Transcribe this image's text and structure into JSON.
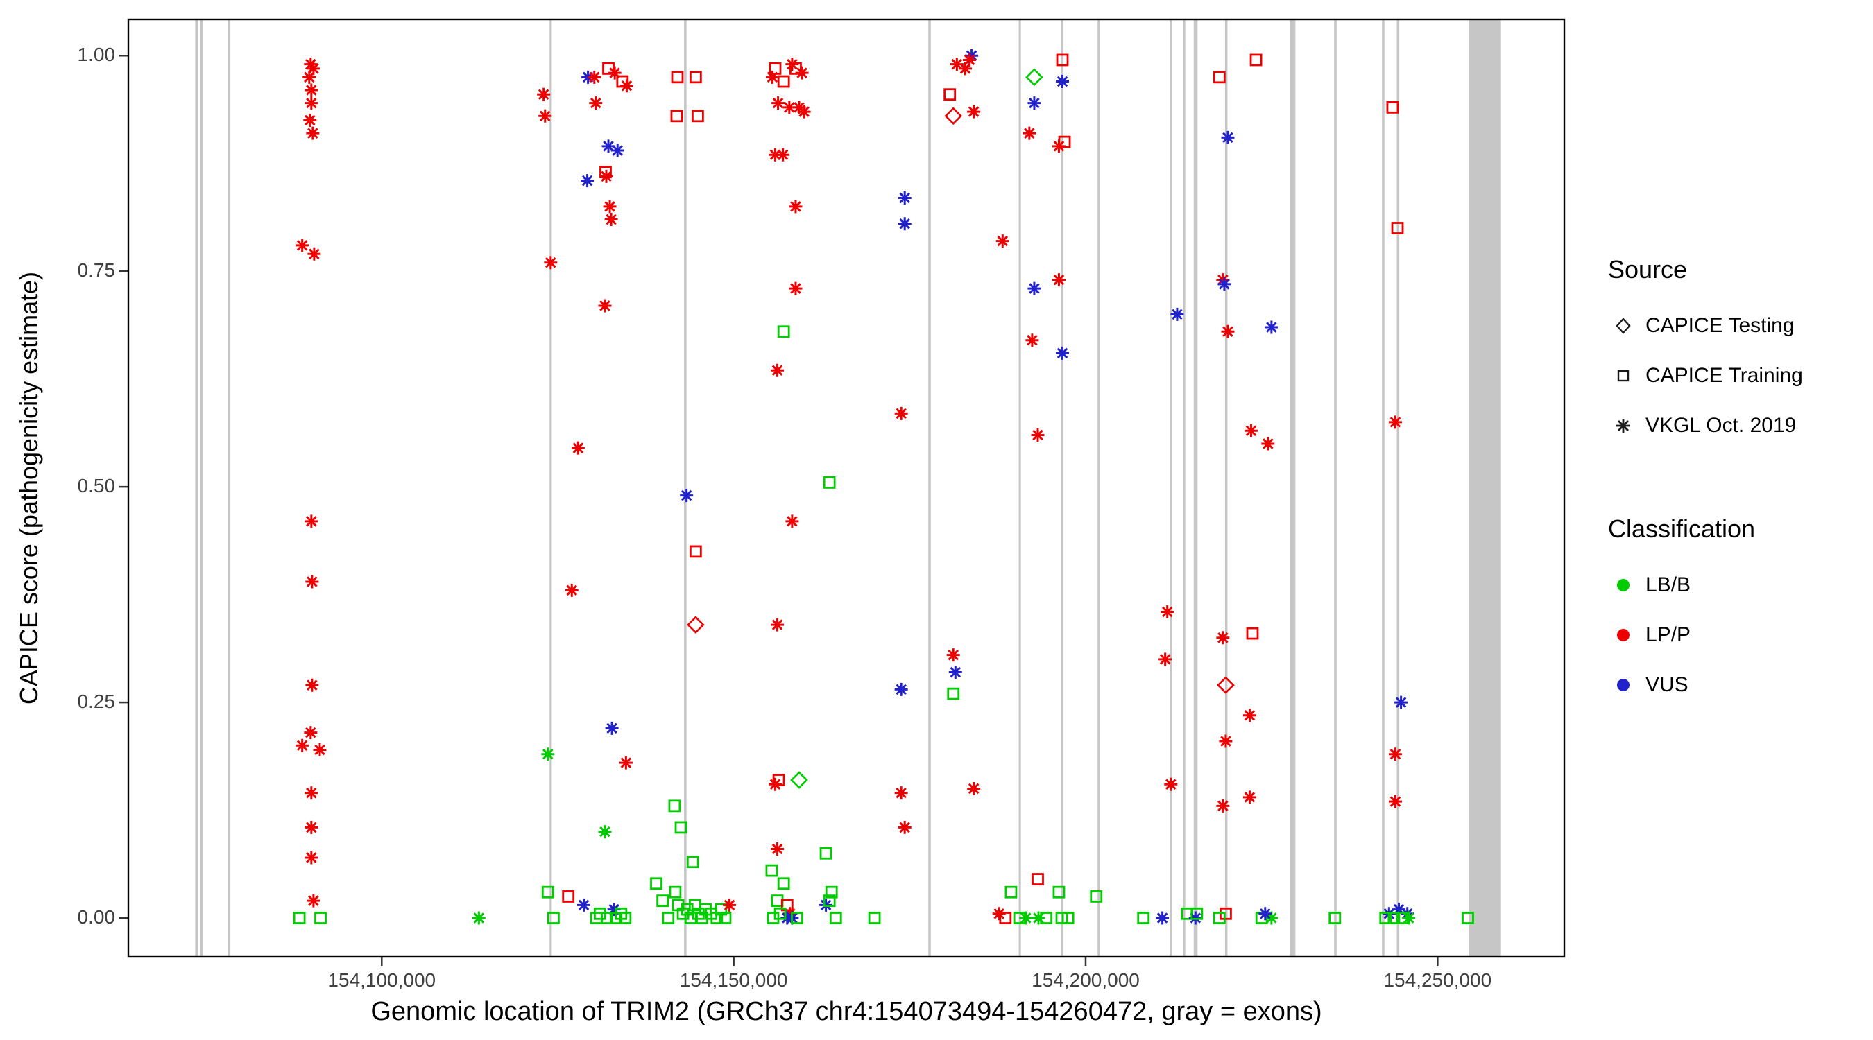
{
  "legend": {
    "source": {
      "title": "Source",
      "items": [
        {
          "shape": "d",
          "label": "CAPICE Testing"
        },
        {
          "shape": "s",
          "label": "CAPICE Training"
        },
        {
          "shape": "a",
          "label": "VKGL Oct. 2019"
        }
      ]
    },
    "classification": {
      "title": "Classification",
      "items": [
        {
          "class_code": "g",
          "label": "LB/B"
        },
        {
          "class_code": "r",
          "label": "LP/P"
        },
        {
          "class_code": "b",
          "label": "VUS"
        }
      ]
    }
  },
  "colors": {
    "lbb_green": "#00CC00",
    "lpp_red": "#EE0000",
    "vus_blue": "#2222CC",
    "exon_gray": "#C6C6C6",
    "axis_text": "#404040",
    "panel_border": "#000000"
  },
  "chart_data": {
    "type": "scatter",
    "title": "",
    "xlabel": "Genomic location of TRIM2 (GRCh37 chr4:154073494-154260472, gray = exons)",
    "ylabel": "CAPICE score (pathogenicity estimate)",
    "xlim": [
      154064000,
      154268000
    ],
    "ylim": [
      -0.045,
      1.042
    ],
    "grid": "off",
    "legend_position": "right",
    "x_ticks": [
      {
        "value": 154100000,
        "label": "154,100,000"
      },
      {
        "value": 154150000,
        "label": "154,150,000"
      },
      {
        "value": 154200000,
        "label": "154,200,000"
      },
      {
        "value": 154250000,
        "label": "154,250,000"
      }
    ],
    "y_ticks": [
      {
        "value": 0.0,
        "label": "0.00"
      },
      {
        "value": 0.25,
        "label": "0.25"
      },
      {
        "value": 0.5,
        "label": "0.50"
      },
      {
        "value": 0.75,
        "label": "0.75"
      },
      {
        "value": 1.0,
        "label": "1.00"
      }
    ],
    "exons": [
      [
        154073500,
        154073900
      ],
      [
        154074250,
        154074600
      ],
      [
        154078100,
        154078450
      ],
      [
        154123850,
        154124150
      ],
      [
        154142950,
        154143300
      ],
      [
        154177650,
        154178000
      ],
      [
        154190500,
        154190800
      ],
      [
        154196500,
        154196800
      ],
      [
        154201700,
        154202000
      ],
      [
        154211950,
        154212250
      ],
      [
        154213800,
        154214150
      ],
      [
        154215350,
        154215900
      ],
      [
        154219800,
        154220150
      ],
      [
        154229000,
        154229800
      ],
      [
        154235300,
        154235650
      ],
      [
        154242100,
        154242450
      ],
      [
        154244200,
        154244550
      ],
      [
        154254500,
        154259000
      ]
    ],
    "point_format": {
      "fields": [
        "x_genomic_position",
        "y_capice_score",
        "source_shape",
        "classification"
      ],
      "source_codes": {
        "d": "CAPICE Testing (open diamond)",
        "s": "CAPICE Training (open square)",
        "a": "VKGL Oct. 2019 (asterisk)"
      },
      "class_codes": {
        "g": "LB/B",
        "r": "LP/P",
        "b": "VUS"
      }
    },
    "points": [
      [
        154089900,
        0.99,
        "a",
        "r"
      ],
      [
        154090300,
        0.985,
        "a",
        "r"
      ],
      [
        154089700,
        0.975,
        "a",
        "r"
      ],
      [
        154090000,
        0.96,
        "a",
        "r"
      ],
      [
        154090000,
        0.945,
        "a",
        "r"
      ],
      [
        154089800,
        0.925,
        "a",
        "r"
      ],
      [
        154090200,
        0.91,
        "a",
        "r"
      ],
      [
        154088700,
        0.78,
        "a",
        "r"
      ],
      [
        154090400,
        0.77,
        "a",
        "r"
      ],
      [
        154090000,
        0.46,
        "a",
        "r"
      ],
      [
        154090100,
        0.39,
        "a",
        "r"
      ],
      [
        154090100,
        0.27,
        "a",
        "r"
      ],
      [
        154089900,
        0.215,
        "a",
        "r"
      ],
      [
        154088700,
        0.2,
        "a",
        "r"
      ],
      [
        154091200,
        0.195,
        "a",
        "r"
      ],
      [
        154090000,
        0.145,
        "a",
        "r"
      ],
      [
        154090000,
        0.105,
        "a",
        "r"
      ],
      [
        154090000,
        0.07,
        "a",
        "r"
      ],
      [
        154090300,
        0.02,
        "a",
        "r"
      ],
      [
        154088300,
        0,
        "s",
        "g"
      ],
      [
        154091300,
        0,
        "s",
        "g"
      ],
      [
        154113800,
        0,
        "a",
        "g"
      ],
      [
        154123000,
        0.955,
        "a",
        "r"
      ],
      [
        154123200,
        0.93,
        "a",
        "r"
      ],
      [
        154124000,
        0.76,
        "a",
        "r"
      ],
      [
        154127000,
        0.38,
        "a",
        "r"
      ],
      [
        154127900,
        0.545,
        "a",
        "r"
      ],
      [
        154129200,
        0.855,
        "a",
        "b"
      ],
      [
        154129300,
        0.975,
        "a",
        "b"
      ],
      [
        154130200,
        0.975,
        "a",
        "r"
      ],
      [
        154130400,
        0.945,
        "a",
        "r"
      ],
      [
        154132200,
        0.985,
        "s",
        "r"
      ],
      [
        154133100,
        0.98,
        "a",
        "r"
      ],
      [
        154134200,
        0.97,
        "s",
        "r"
      ],
      [
        154134800,
        0.965,
        "a",
        "r"
      ],
      [
        154131700,
        0.71,
        "a",
        "r"
      ],
      [
        154132200,
        0.895,
        "a",
        "b"
      ],
      [
        154133500,
        0.89,
        "a",
        "b"
      ],
      [
        154131800,
        0.865,
        "s",
        "r"
      ],
      [
        154131900,
        0.86,
        "a",
        "r"
      ],
      [
        154132400,
        0.825,
        "a",
        "r"
      ],
      [
        154132600,
        0.81,
        "a",
        "r"
      ],
      [
        154123600,
        0.19,
        "a",
        "g"
      ],
      [
        154131700,
        0.1,
        "a",
        "g"
      ],
      [
        154132700,
        0.22,
        "a",
        "b"
      ],
      [
        154134700,
        0.18,
        "a",
        "r"
      ],
      [
        154126500,
        0.025,
        "s",
        "r"
      ],
      [
        154123600,
        0.03,
        "s",
        "g"
      ],
      [
        154124400,
        0,
        "s",
        "g"
      ],
      [
        154128700,
        0.015,
        "a",
        "b"
      ],
      [
        154130500,
        0,
        "s",
        "g"
      ],
      [
        154131000,
        0.005,
        "s",
        "g"
      ],
      [
        154133000,
        0.01,
        "a",
        "b"
      ],
      [
        154132000,
        0,
        "s",
        "g"
      ],
      [
        154133300,
        0,
        "s",
        "g"
      ],
      [
        154134000,
        0.005,
        "s",
        "g"
      ],
      [
        154134600,
        0,
        "s",
        "g"
      ],
      [
        154139000,
        0.04,
        "s",
        "g"
      ],
      [
        154139900,
        0.02,
        "s",
        "g"
      ],
      [
        154140700,
        0,
        "s",
        "g"
      ],
      [
        154141600,
        0.13,
        "s",
        "g"
      ],
      [
        154142500,
        0.105,
        "s",
        "g"
      ],
      [
        154142000,
        0.975,
        "s",
        "r"
      ],
      [
        154144600,
        0.975,
        "s",
        "r"
      ],
      [
        154141900,
        0.93,
        "s",
        "r"
      ],
      [
        154144900,
        0.93,
        "s",
        "r"
      ],
      [
        154143300,
        0.49,
        "a",
        "b"
      ],
      [
        154144600,
        0.425,
        "s",
        "r"
      ],
      [
        154144600,
        0.34,
        "d",
        "r"
      ],
      [
        154144200,
        0.065,
        "s",
        "g"
      ],
      [
        154141700,
        0.03,
        "s",
        "g"
      ],
      [
        154142100,
        0.015,
        "s",
        "g"
      ],
      [
        154142800,
        0.005,
        "s",
        "g"
      ],
      [
        154143400,
        0.01,
        "s",
        "g"
      ],
      [
        154143900,
        0,
        "s",
        "g"
      ],
      [
        154144500,
        0.015,
        "s",
        "g"
      ],
      [
        154145000,
        0.005,
        "s",
        "g"
      ],
      [
        154145500,
        0,
        "s",
        "g"
      ],
      [
        154146000,
        0.01,
        "s",
        "g"
      ],
      [
        154146800,
        0.005,
        "s",
        "g"
      ],
      [
        154147600,
        0,
        "s",
        "g"
      ],
      [
        154148200,
        0.01,
        "s",
        "g"
      ],
      [
        154148800,
        0,
        "s",
        "g"
      ],
      [
        154149400,
        0.015,
        "a",
        "r"
      ],
      [
        154155900,
        0.985,
        "s",
        "r"
      ],
      [
        154155500,
        0.975,
        "a",
        "r"
      ],
      [
        154156300,
        0.945,
        "a",
        "r"
      ],
      [
        154157100,
        0.97,
        "s",
        "r"
      ],
      [
        154158300,
        0.99,
        "a",
        "r"
      ],
      [
        154158800,
        0.985,
        "s",
        "r"
      ],
      [
        154159700,
        0.98,
        "a",
        "r"
      ],
      [
        154157900,
        0.94,
        "a",
        "r"
      ],
      [
        154159300,
        0.94,
        "a",
        "r"
      ],
      [
        154160000,
        0.935,
        "a",
        "r"
      ],
      [
        154155900,
        0.885,
        "a",
        "r"
      ],
      [
        154157000,
        0.885,
        "a",
        "r"
      ],
      [
        154158800,
        0.825,
        "a",
        "r"
      ],
      [
        154158800,
        0.73,
        "a",
        "r"
      ],
      [
        154157100,
        0.68,
        "s",
        "g"
      ],
      [
        154156200,
        0.635,
        "a",
        "r"
      ],
      [
        154158300,
        0.46,
        "a",
        "r"
      ],
      [
        154156200,
        0.34,
        "a",
        "r"
      ],
      [
        154163600,
        0.505,
        "s",
        "g"
      ],
      [
        154155900,
        0.155,
        "a",
        "r"
      ],
      [
        154156400,
        0.16,
        "s",
        "r"
      ],
      [
        154159300,
        0.16,
        "d",
        "g"
      ],
      [
        154156200,
        0.08,
        "a",
        "r"
      ],
      [
        154155400,
        0.055,
        "s",
        "g"
      ],
      [
        154157100,
        0.04,
        "s",
        "g"
      ],
      [
        154163100,
        0.075,
        "s",
        "g"
      ],
      [
        154163900,
        0.03,
        "s",
        "g"
      ],
      [
        154156200,
        0.02,
        "s",
        "g"
      ],
      [
        154157600,
        0.015,
        "s",
        "r"
      ],
      [
        154158000,
        0.005,
        "a",
        "r"
      ],
      [
        154157600,
        0,
        "a",
        "b"
      ],
      [
        154158300,
        0,
        "a",
        "b"
      ],
      [
        154155600,
        0,
        "s",
        "g"
      ],
      [
        154156600,
        0.005,
        "s",
        "g"
      ],
      [
        154159000,
        0,
        "s",
        "g"
      ],
      [
        154163100,
        0.015,
        "a",
        "b"
      ],
      [
        154163600,
        0.02,
        "s",
        "g"
      ],
      [
        154164500,
        0,
        "s",
        "g"
      ],
      [
        154170000,
        0,
        "s",
        "g"
      ],
      [
        154174300,
        0.835,
        "a",
        "b"
      ],
      [
        154174300,
        0.805,
        "a",
        "b"
      ],
      [
        154173800,
        0.585,
        "a",
        "r"
      ],
      [
        154173800,
        0.265,
        "a",
        "b"
      ],
      [
        154173800,
        0.145,
        "a",
        "r"
      ],
      [
        154174300,
        0.105,
        "a",
        "r"
      ],
      [
        154180700,
        0.955,
        "s",
        "r"
      ],
      [
        154181200,
        0.93,
        "d",
        "r"
      ],
      [
        154181700,
        0.99,
        "a",
        "r"
      ],
      [
        154182900,
        0.985,
        "a",
        "r"
      ],
      [
        154183800,
        1.0,
        "a",
        "b"
      ],
      [
        154183500,
        0.995,
        "a",
        "r"
      ],
      [
        154184100,
        0.935,
        "a",
        "r"
      ],
      [
        154181200,
        0.305,
        "a",
        "r"
      ],
      [
        154181500,
        0.285,
        "a",
        "b"
      ],
      [
        154181200,
        0.26,
        "s",
        "g"
      ],
      [
        154188200,
        0.785,
        "a",
        "r"
      ],
      [
        154184100,
        0.15,
        "a",
        "r"
      ],
      [
        154187700,
        0.005,
        "a",
        "r"
      ],
      [
        154188600,
        0,
        "s",
        "r"
      ],
      [
        154189400,
        0.03,
        "s",
        "g"
      ],
      [
        154190600,
        0,
        "s",
        "g"
      ],
      [
        154191500,
        0,
        "a",
        "g"
      ],
      [
        154192700,
        0.975,
        "d",
        "g"
      ],
      [
        154196700,
        0.995,
        "s",
        "r"
      ],
      [
        154192700,
        0.945,
        "a",
        "b"
      ],
      [
        154196700,
        0.97,
        "a",
        "b"
      ],
      [
        154192000,
        0.91,
        "a",
        "r"
      ],
      [
        154196200,
        0.895,
        "a",
        "r"
      ],
      [
        154197000,
        0.9,
        "s",
        "r"
      ],
      [
        154196200,
        0.74,
        "a",
        "r"
      ],
      [
        154192700,
        0.73,
        "a",
        "b"
      ],
      [
        154192400,
        0.67,
        "a",
        "r"
      ],
      [
        154196700,
        0.655,
        "a",
        "b"
      ],
      [
        154193200,
        0.56,
        "a",
        "r"
      ],
      [
        154193200,
        0.045,
        "s",
        "r"
      ],
      [
        154196200,
        0.03,
        "s",
        "g"
      ],
      [
        154193300,
        0,
        "a",
        "g"
      ],
      [
        154194400,
        0,
        "s",
        "g"
      ],
      [
        154196600,
        0,
        "s",
        "g"
      ],
      [
        154197500,
        0,
        "s",
        "g"
      ],
      [
        154201500,
        0.025,
        "s",
        "g"
      ],
      [
        154211600,
        0.355,
        "a",
        "r"
      ],
      [
        154211300,
        0.3,
        "a",
        "r"
      ],
      [
        154213000,
        0.7,
        "a",
        "b"
      ],
      [
        154212100,
        0.155,
        "a",
        "r"
      ],
      [
        154208200,
        0,
        "s",
        "g"
      ],
      [
        154210900,
        0,
        "a",
        "b"
      ],
      [
        154214400,
        0.005,
        "s",
        "g"
      ],
      [
        154215600,
        0,
        "a",
        "b"
      ],
      [
        154215800,
        0.005,
        "s",
        "g"
      ],
      [
        154219000,
        0.975,
        "s",
        "r"
      ],
      [
        154220200,
        0.905,
        "a",
        "b"
      ],
      [
        154219500,
        0.74,
        "a",
        "r"
      ],
      [
        154219700,
        0.735,
        "a",
        "b"
      ],
      [
        154220200,
        0.68,
        "a",
        "r"
      ],
      [
        154224200,
        0.995,
        "s",
        "r"
      ],
      [
        154226400,
        0.685,
        "a",
        "b"
      ],
      [
        154223500,
        0.565,
        "a",
        "r"
      ],
      [
        154225900,
        0.55,
        "a",
        "r"
      ],
      [
        154219500,
        0.325,
        "a",
        "r"
      ],
      [
        154223700,
        0.33,
        "s",
        "r"
      ],
      [
        154219900,
        0.27,
        "d",
        "r"
      ],
      [
        154223300,
        0.235,
        "a",
        "r"
      ],
      [
        154219900,
        0.205,
        "a",
        "r"
      ],
      [
        154223300,
        0.14,
        "a",
        "r"
      ],
      [
        154219500,
        0.13,
        "a",
        "r"
      ],
      [
        154219900,
        0.005,
        "s",
        "r"
      ],
      [
        154219000,
        0,
        "s",
        "g"
      ],
      [
        154225000,
        0,
        "s",
        "g"
      ],
      [
        154226400,
        0,
        "a",
        "g"
      ],
      [
        154225500,
        0.005,
        "a",
        "b"
      ],
      [
        154235400,
        0,
        "s",
        "g"
      ],
      [
        154243600,
        0.94,
        "s",
        "r"
      ],
      [
        154244300,
        0.8,
        "s",
        "r"
      ],
      [
        154244000,
        0.575,
        "a",
        "r"
      ],
      [
        154244800,
        0.25,
        "a",
        "b"
      ],
      [
        154244000,
        0.19,
        "a",
        "r"
      ],
      [
        154244000,
        0.135,
        "a",
        "r"
      ],
      [
        154243100,
        0.005,
        "a",
        "b"
      ],
      [
        154244500,
        0.01,
        "a",
        "b"
      ],
      [
        154245700,
        0.005,
        "a",
        "b"
      ],
      [
        154242600,
        0,
        "s",
        "g"
      ],
      [
        154243800,
        0,
        "s",
        "g"
      ],
      [
        154245000,
        0,
        "s",
        "g"
      ],
      [
        154245900,
        0,
        "a",
        "g"
      ],
      [
        154254300,
        0,
        "s",
        "g"
      ]
    ]
  }
}
